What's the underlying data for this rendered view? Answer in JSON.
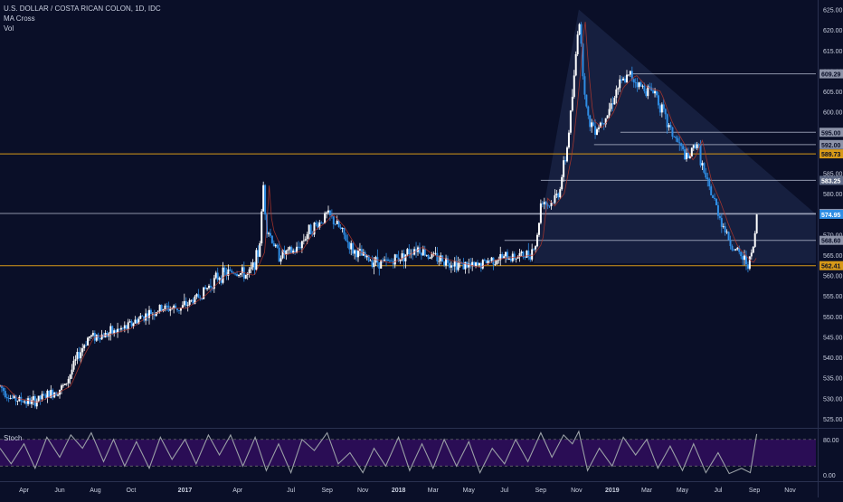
{
  "legend": {
    "title": "U.S. DOLLAR / COSTA RICAN COLON, 1D, IDC",
    "indicator_1": "MA Cross",
    "indicator_2": "Vol"
  },
  "stoch_label": "Stoch",
  "colors": {
    "background": "#0a0f28",
    "candle_up": "#ffffff",
    "candle_down": "#2f8de4",
    "support_line": "#d89a18",
    "level_line": "#b9c0d4",
    "triangle_fill": "#1b2647",
    "stoch_band": "#2a0d55",
    "stoch_line": "#9aa0a6",
    "text": "#c9cfdf"
  },
  "chart_data": [
    {
      "type": "candlestick",
      "title": "U.S. DOLLAR / COSTA RICAN COLON, 1D, IDC",
      "y_ticks": [
        "625.00",
        "620.00",
        "615.00",
        "610.00",
        "605.00",
        "600.00",
        "595.00",
        "590.00",
        "585.00",
        "580.00",
        "575.00",
        "570.00",
        "565.00",
        "560.00",
        "555.00",
        "550.00",
        "545.00",
        "540.00",
        "535.00",
        "530.00",
        "525.00"
      ],
      "ylim": [
        523,
        626
      ],
      "x_ticks": [
        "Apr",
        "Jun",
        "Aug",
        "Oct",
        "2017",
        "Apr",
        "Jul",
        "Sep",
        "Nov",
        "2018",
        "Mar",
        "May",
        "Jul",
        "Sep",
        "Nov",
        "2019",
        "Mar",
        "May",
        "Jul",
        "Sep",
        "Nov"
      ],
      "x_tick_dates": [
        "2016-04-01",
        "2016-06-01",
        "2016-08-01",
        "2016-10-01",
        "2017-01-01",
        "2017-04-01",
        "2017-07-01",
        "2017-09-01",
        "2017-11-01",
        "2018-01-01",
        "2018-03-01",
        "2018-05-01",
        "2018-07-01",
        "2018-09-01",
        "2018-11-01",
        "2019-01-01",
        "2019-03-01",
        "2019-05-01",
        "2019-07-01",
        "2019-09-01",
        "2019-11-01"
      ],
      "xlim": [
        "2016-02-20",
        "2019-12-15"
      ],
      "price_path": [
        [
          "2016-02-20",
          533
        ],
        [
          "2016-03-10",
          530
        ],
        [
          "2016-04-15",
          529
        ],
        [
          "2016-05-15",
          531
        ],
        [
          "2016-06-10",
          533
        ],
        [
          "2016-07-01",
          540
        ],
        [
          "2016-07-20",
          545
        ],
        [
          "2016-08-15",
          545.5
        ],
        [
          "2016-09-20",
          547
        ],
        [
          "2016-10-20",
          550
        ],
        [
          "2016-11-25",
          552
        ],
        [
          "2016-12-25",
          552
        ],
        [
          "2017-01-25",
          555
        ],
        [
          "2017-03-01",
          560
        ],
        [
          "2017-03-25",
          561
        ],
        [
          "2017-04-20",
          560
        ],
        [
          "2017-05-08",
          566
        ],
        [
          "2017-05-15",
          582
        ],
        [
          "2017-05-20",
          572
        ],
        [
          "2017-06-10",
          565
        ],
        [
          "2017-07-10",
          566
        ],
        [
          "2017-08-01",
          571
        ],
        [
          "2017-08-20",
          573
        ],
        [
          "2017-09-01",
          575
        ],
        [
          "2017-09-20",
          572
        ],
        [
          "2017-10-15",
          566
        ],
        [
          "2017-11-10",
          564
        ],
        [
          "2017-12-10",
          563
        ],
        [
          "2018-01-10",
          565
        ],
        [
          "2018-02-01",
          567
        ],
        [
          "2018-02-20",
          565
        ],
        [
          "2018-03-15",
          564
        ],
        [
          "2018-04-10",
          563
        ],
        [
          "2018-05-10",
          562
        ],
        [
          "2018-06-10",
          564
        ],
        [
          "2018-07-10",
          564.5
        ],
        [
          "2018-08-10",
          565
        ],
        [
          "2018-08-25",
          568
        ],
        [
          "2018-09-02",
          579
        ],
        [
          "2018-09-15",
          577
        ],
        [
          "2018-10-01",
          580
        ],
        [
          "2018-10-15",
          590
        ],
        [
          "2018-10-28",
          608
        ],
        [
          "2018-11-05",
          624
        ],
        [
          "2018-11-12",
          610
        ],
        [
          "2018-11-20",
          598
        ],
        [
          "2018-12-05",
          596
        ],
        [
          "2018-12-25",
          600
        ],
        [
          "2019-01-10",
          606
        ],
        [
          "2019-02-01",
          609
        ],
        [
          "2019-02-20",
          606
        ],
        [
          "2019-03-15",
          605
        ],
        [
          "2019-04-05",
          597
        ],
        [
          "2019-04-25",
          592
        ],
        [
          "2019-05-10",
          588
        ],
        [
          "2019-05-25",
          593
        ],
        [
          "2019-06-10",
          583
        ],
        [
          "2019-06-25",
          578
        ],
        [
          "2019-07-10",
          572
        ],
        [
          "2019-07-25",
          567
        ],
        [
          "2019-08-10",
          564.5
        ],
        [
          "2019-08-20",
          563
        ],
        [
          "2019-08-28",
          565
        ],
        [
          "2019-09-02",
          570
        ],
        [
          "2019-09-05",
          575
        ]
      ],
      "price_labels": [
        {
          "label": "609.29",
          "value": 609.29,
          "kind": "level"
        },
        {
          "label": "595.00",
          "value": 595.0,
          "kind": "level"
        },
        {
          "label": "592.00",
          "value": 592.0,
          "kind": "level"
        },
        {
          "label": "589.73",
          "value": 589.73,
          "kind": "support"
        },
        {
          "label": "583.25",
          "value": 583.25,
          "kind": "level-current"
        },
        {
          "label": "575.17",
          "value": 575.17,
          "kind": "level"
        },
        {
          "label": "574.95",
          "value": 574.95,
          "kind": "current"
        },
        {
          "label": "568.60",
          "value": 568.6,
          "kind": "level"
        },
        {
          "label": "562.41",
          "value": 562.41,
          "kind": "support"
        }
      ],
      "horizontal_lines": [
        {
          "value": 609.29,
          "from": "2019-02-05",
          "kind": "level"
        },
        {
          "value": 595.0,
          "from": "2019-01-15",
          "kind": "level"
        },
        {
          "value": 592.0,
          "from": "2018-12-01",
          "kind": "level"
        },
        {
          "value": 589.73,
          "from": "2016-02-20",
          "kind": "support"
        },
        {
          "value": 583.25,
          "from": "2018-09-01",
          "kind": "level"
        },
        {
          "value": 575.17,
          "from": "2016-02-20",
          "kind": "level"
        },
        {
          "value": 575.0,
          "from": "2017-09-01",
          "kind": "level"
        },
        {
          "value": 568.6,
          "from": "2018-07-01",
          "kind": "level"
        },
        {
          "value": 562.41,
          "from": "2016-02-20",
          "kind": "support"
        }
      ],
      "triangle": [
        [
          "2018-08-20",
          563
        ],
        [
          "2018-11-05",
          625
        ],
        [
          "2019-12-15",
          575
        ],
        [
          "2019-12-15",
          563
        ]
      ]
    },
    {
      "type": "line",
      "title": "Stoch",
      "y_ticks": [
        "80.00",
        "0.00"
      ],
      "ylim": [
        -10,
        100
      ],
      "band": [
        20,
        80
      ],
      "path": [
        [
          "2016-02-20",
          60
        ],
        [
          "2016-03-10",
          25
        ],
        [
          "2016-04-01",
          70
        ],
        [
          "2016-04-20",
          15
        ],
        [
          "2016-05-10",
          85
        ],
        [
          "2016-06-01",
          40
        ],
        [
          "2016-06-20",
          90
        ],
        [
          "2016-07-10",
          60
        ],
        [
          "2016-07-25",
          95
        ],
        [
          "2016-08-15",
          30
        ],
        [
          "2016-09-01",
          80
        ],
        [
          "2016-09-20",
          20
        ],
        [
          "2016-10-10",
          75
        ],
        [
          "2016-11-01",
          15
        ],
        [
          "2016-11-20",
          85
        ],
        [
          "2016-12-10",
          35
        ],
        [
          "2017-01-01",
          80
        ],
        [
          "2017-01-20",
          25
        ],
        [
          "2017-02-10",
          90
        ],
        [
          "2017-03-01",
          45
        ],
        [
          "2017-03-20",
          90
        ],
        [
          "2017-04-10",
          20
        ],
        [
          "2017-05-01",
          85
        ],
        [
          "2017-05-20",
          10
        ],
        [
          "2017-06-10",
          70
        ],
        [
          "2017-07-01",
          5
        ],
        [
          "2017-07-20",
          80
        ],
        [
          "2017-08-10",
          55
        ],
        [
          "2017-09-01",
          95
        ],
        [
          "2017-09-20",
          25
        ],
        [
          "2017-10-10",
          50
        ],
        [
          "2017-11-01",
          5
        ],
        [
          "2017-11-20",
          60
        ],
        [
          "2017-12-10",
          20
        ],
        [
          "2018-01-01",
          85
        ],
        [
          "2018-01-20",
          10
        ],
        [
          "2018-02-10",
          70
        ],
        [
          "2018-03-01",
          15
        ],
        [
          "2018-03-20",
          80
        ],
        [
          "2018-04-10",
          20
        ],
        [
          "2018-05-01",
          75
        ],
        [
          "2018-05-20",
          5
        ],
        [
          "2018-06-10",
          60
        ],
        [
          "2018-07-01",
          25
        ],
        [
          "2018-07-20",
          80
        ],
        [
          "2018-08-10",
          30
        ],
        [
          "2018-09-01",
          95
        ],
        [
          "2018-09-20",
          40
        ],
        [
          "2018-10-10",
          90
        ],
        [
          "2018-10-25",
          70
        ],
        [
          "2018-11-05",
          98
        ],
        [
          "2018-11-20",
          10
        ],
        [
          "2018-12-10",
          60
        ],
        [
          "2019-01-01",
          20
        ],
        [
          "2019-01-20",
          85
        ],
        [
          "2019-02-10",
          45
        ],
        [
          "2019-03-01",
          80
        ],
        [
          "2019-03-20",
          15
        ],
        [
          "2019-04-10",
          65
        ],
        [
          "2019-05-01",
          10
        ],
        [
          "2019-05-20",
          70
        ],
        [
          "2019-06-10",
          5
        ],
        [
          "2019-07-01",
          50
        ],
        [
          "2019-07-20",
          3
        ],
        [
          "2019-08-10",
          15
        ],
        [
          "2019-08-25",
          5
        ],
        [
          "2019-09-05",
          92
        ]
      ]
    }
  ]
}
